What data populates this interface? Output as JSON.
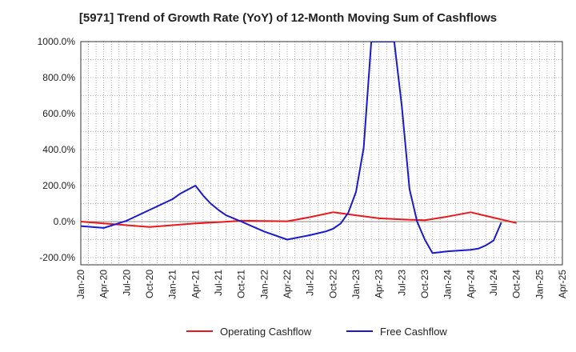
{
  "chart_data": {
    "type": "line",
    "title": "[5971]  Trend of Growth Rate (YoY) of 12-Month Moving Sum of Cashflows",
    "x_ticks": [
      "Jan-20",
      "Apr-20",
      "Jul-20",
      "Oct-20",
      "Jan-21",
      "Apr-21",
      "Jul-21",
      "Oct-21",
      "Jan-22",
      "Apr-22",
      "Jul-22",
      "Oct-22",
      "Jan-23",
      "Apr-23",
      "Jul-23",
      "Oct-23",
      "Jan-24",
      "Apr-24",
      "Jul-24",
      "Oct-24",
      "Jan-25",
      "Apr-25"
    ],
    "y_ticks": [
      "-200.0%",
      "0.0%",
      "200.0%",
      "400.0%",
      "600.0%",
      "800.0%",
      "1000.0%"
    ],
    "ylim": [
      -240,
      1000
    ],
    "grid": true,
    "legend_position": "bottom",
    "series": [
      {
        "name": "Operating Cashflow",
        "color": "#e8191c",
        "points": [
          [
            "Jan-20",
            0
          ],
          [
            "Apr-20",
            -10
          ],
          [
            "Jul-20",
            -20
          ],
          [
            "Oct-20",
            -30
          ],
          [
            "Jan-21",
            -20
          ],
          [
            "Apr-21",
            -10
          ],
          [
            "Jul-21",
            -3
          ],
          [
            "Oct-21",
            5
          ],
          [
            "Jan-22",
            3
          ],
          [
            "Apr-22",
            2
          ],
          [
            "Jul-22",
            25
          ],
          [
            "Oct-22",
            52
          ],
          [
            "Jan-23",
            35
          ],
          [
            "Apr-23",
            18
          ],
          [
            "Jul-23",
            12
          ],
          [
            "Oct-23",
            8
          ],
          [
            "Jan-24",
            28
          ],
          [
            "Apr-24",
            52
          ],
          [
            "Jul-24",
            22
          ],
          [
            "Oct-24",
            -8
          ]
        ]
      },
      {
        "name": "Free Cashflow",
        "color": "#1a1acc",
        "points": [
          [
            "Jan-20",
            -25
          ],
          [
            "Apr-20",
            -35
          ],
          [
            "Jul-20",
            5
          ],
          [
            "Oct-20",
            65
          ],
          [
            "Jan-21",
            125
          ],
          [
            "Feb-21",
            155
          ],
          [
            "Apr-21",
            200
          ],
          [
            "May-21",
            145
          ],
          [
            "Jun-21",
            100
          ],
          [
            "Jul-21",
            65
          ],
          [
            "Aug-21",
            35
          ],
          [
            "Oct-21",
            0
          ],
          [
            "Jan-22",
            -55
          ],
          [
            "Apr-22",
            -100
          ],
          [
            "Jul-22",
            -75
          ],
          [
            "Sep-22",
            -55
          ],
          [
            "Oct-22",
            -40
          ],
          [
            "Nov-22",
            -10
          ],
          [
            "Dec-22",
            50
          ],
          [
            "Jan-23",
            165
          ],
          [
            "Feb-23",
            410
          ],
          [
            "Mar-23",
            1000
          ],
          [
            "Jun-23",
            1000
          ],
          [
            "Jul-23",
            640
          ],
          [
            "Aug-23",
            180
          ],
          [
            "Sep-23",
            0
          ],
          [
            "Oct-23",
            -100
          ],
          [
            "Nov-23",
            -175
          ],
          [
            "Jan-24",
            -165
          ],
          [
            "Apr-24",
            -157
          ],
          [
            "May-24",
            -150
          ],
          [
            "Jun-24",
            -132
          ],
          [
            "Jul-24",
            -105
          ],
          [
            "Aug-24",
            -5
          ]
        ]
      }
    ]
  }
}
